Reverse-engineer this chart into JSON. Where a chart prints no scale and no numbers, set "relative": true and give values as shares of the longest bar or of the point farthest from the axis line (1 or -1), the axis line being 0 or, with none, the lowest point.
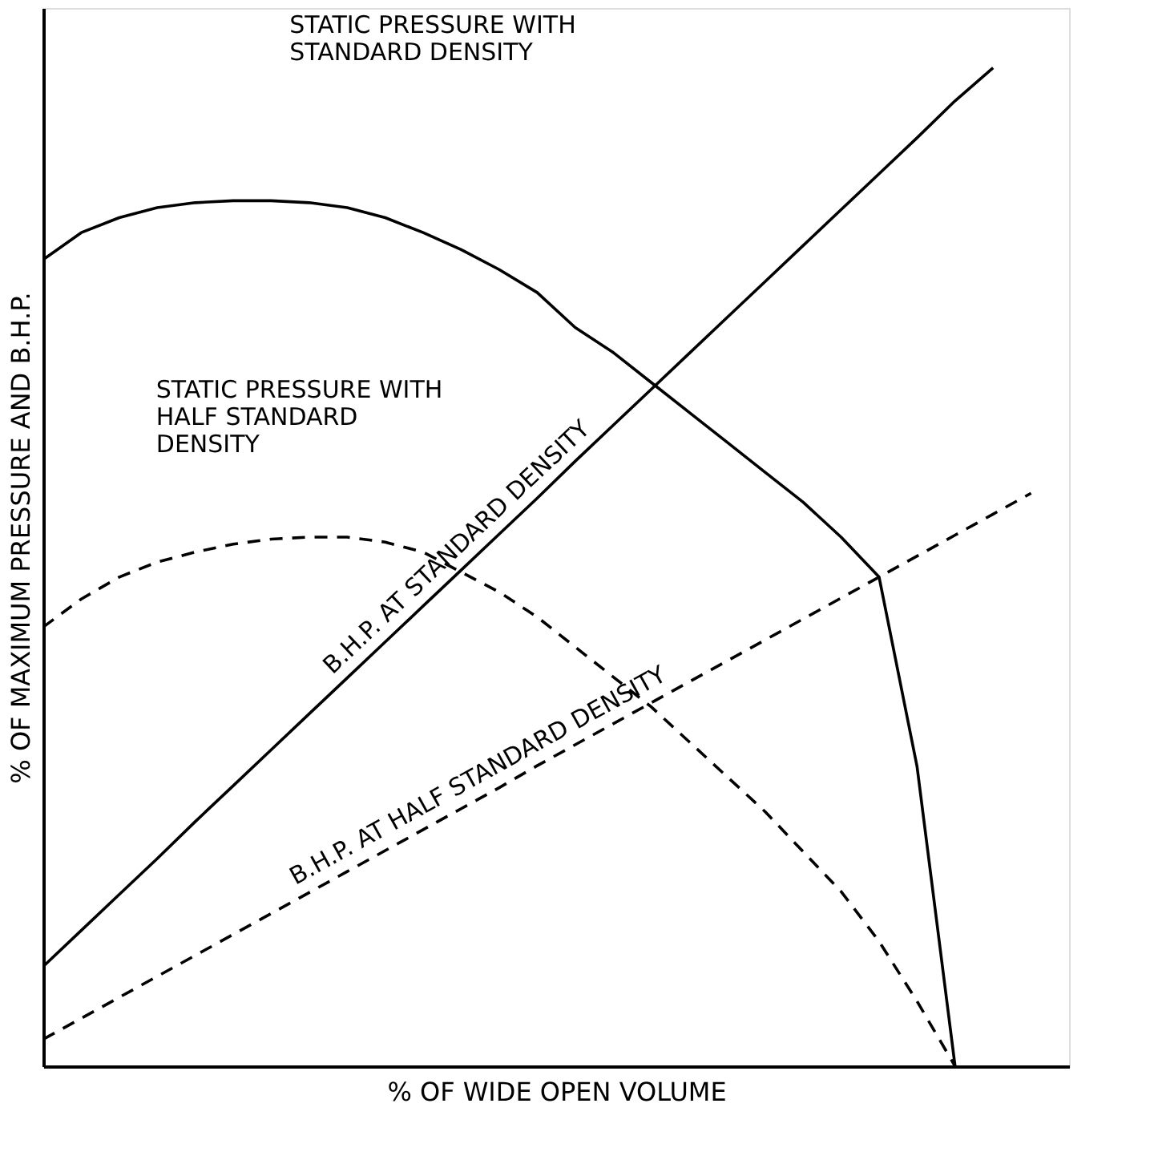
{
  "chart_data": {
    "type": "line",
    "relative": true,
    "xlabel": "% OF WIDE OPEN VOLUME",
    "ylabel": "% OF MAXIMUM PRESSURE AND B.H.P.",
    "categories": [
      null,
      null,
      null,
      null,
      null,
      null,
      null,
      null,
      null,
      null,
      null,
      null,
      null,
      null,
      null,
      null,
      null,
      null,
      null,
      null,
      null,
      null,
      null,
      null,
      null,
      null,
      null,
      null
    ],
    "series": [
      {
        "color": "#000000",
        "line_style": "solid",
        "values": [
          0.808,
          0.835,
          0.85,
          0.86,
          0.865,
          0.867,
          0.867,
          0.865,
          0.86,
          0.85,
          0.835,
          0.818,
          0.798,
          0.775,
          0.74,
          0.715,
          0.685,
          0.655,
          0.625,
          0.595,
          0.565,
          0.53,
          0.49,
          0.3,
          0,
          null,
          null,
          null
        ]
      },
      {
        "color": "#000000",
        "line_style": "dashed",
        "values": [
          0.44,
          0.468,
          0.49,
          0.505,
          0.515,
          0.523,
          0.528,
          0.53,
          0.53,
          0.525,
          0.515,
          0.495,
          0.475,
          0.45,
          0.42,
          0.39,
          0.36,
          0.325,
          0.29,
          0.255,
          0.215,
          0.175,
          0.125,
          0.065,
          0,
          null,
          null,
          null
        ]
      },
      {
        "color": "#000000",
        "line_style": "solid",
        "values": [
          0.1,
          0.136,
          0.172,
          0.208,
          0.245,
          0.281,
          0.317,
          0.353,
          0.389,
          0.425,
          0.461,
          0.497,
          0.533,
          0.569,
          0.606,
          0.642,
          0.678,
          0.714,
          0.75,
          0.786,
          0.822,
          0.858,
          0.894,
          0.93,
          0.967,
          1.0,
          null,
          null
        ]
      },
      {
        "color": "#000000",
        "line_style": "dashed",
        "values": [
          0.027,
          0.048,
          0.069,
          0.09,
          0.111,
          0.132,
          0.153,
          0.174,
          0.195,
          0.216,
          0.237,
          0.258,
          0.279,
          0.301,
          0.322,
          0.343,
          0.364,
          0.385,
          0.406,
          0.427,
          0.448,
          0.469,
          0.49,
          0.511,
          0.532,
          0.553,
          0.574,
          null
        ]
      }
    ],
    "annotations": [
      "STATIC PRESSURE WITH\nSTANDARD DENSITY",
      "STATIC PRESSURE WITH\nHALF STANDARD\nDENSITY",
      "B.H.P. AT STANDARD DENSITY",
      "B.H.P. AT HALF STANDARD DENSITY"
    ]
  }
}
